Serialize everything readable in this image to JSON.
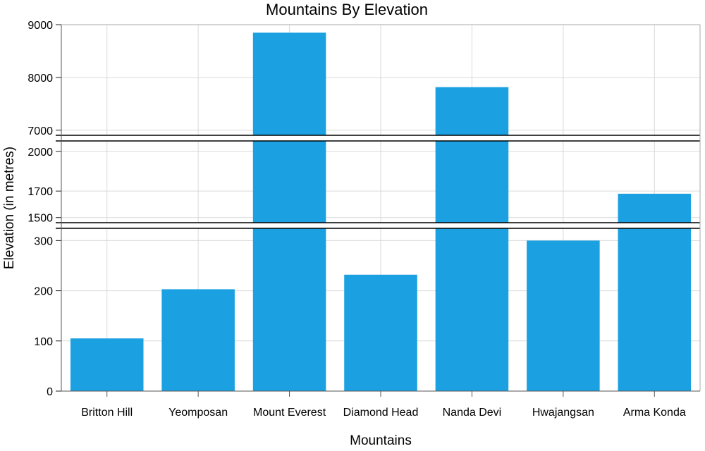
{
  "chart_data": {
    "type": "bar",
    "title": "Mountains By Elevation",
    "xlabel": "Mountains",
    "ylabel": "Elevation (in metres)",
    "categories": [
      "Britton Hill",
      "Yeomposan",
      "Mount Everest",
      "Diamond Head",
      "Nanda Devi",
      "Hwajangsan",
      "Arma Konda"
    ],
    "values": [
      105,
      203,
      8848,
      232,
      7816,
      300,
      1680
    ],
    "color": "#1ba1e2",
    "grid": true,
    "axis_breaks": true,
    "segments": [
      {
        "ylim": [
          0,
          330
        ],
        "ticks": [
          0,
          100,
          200,
          300
        ]
      },
      {
        "ylim": [
          1440,
          2100
        ],
        "ticks": [
          1500,
          1700,
          2000
        ]
      },
      {
        "ylim": [
          6850,
          9000
        ],
        "ticks": [
          7000,
          8000,
          9000
        ]
      }
    ]
  }
}
